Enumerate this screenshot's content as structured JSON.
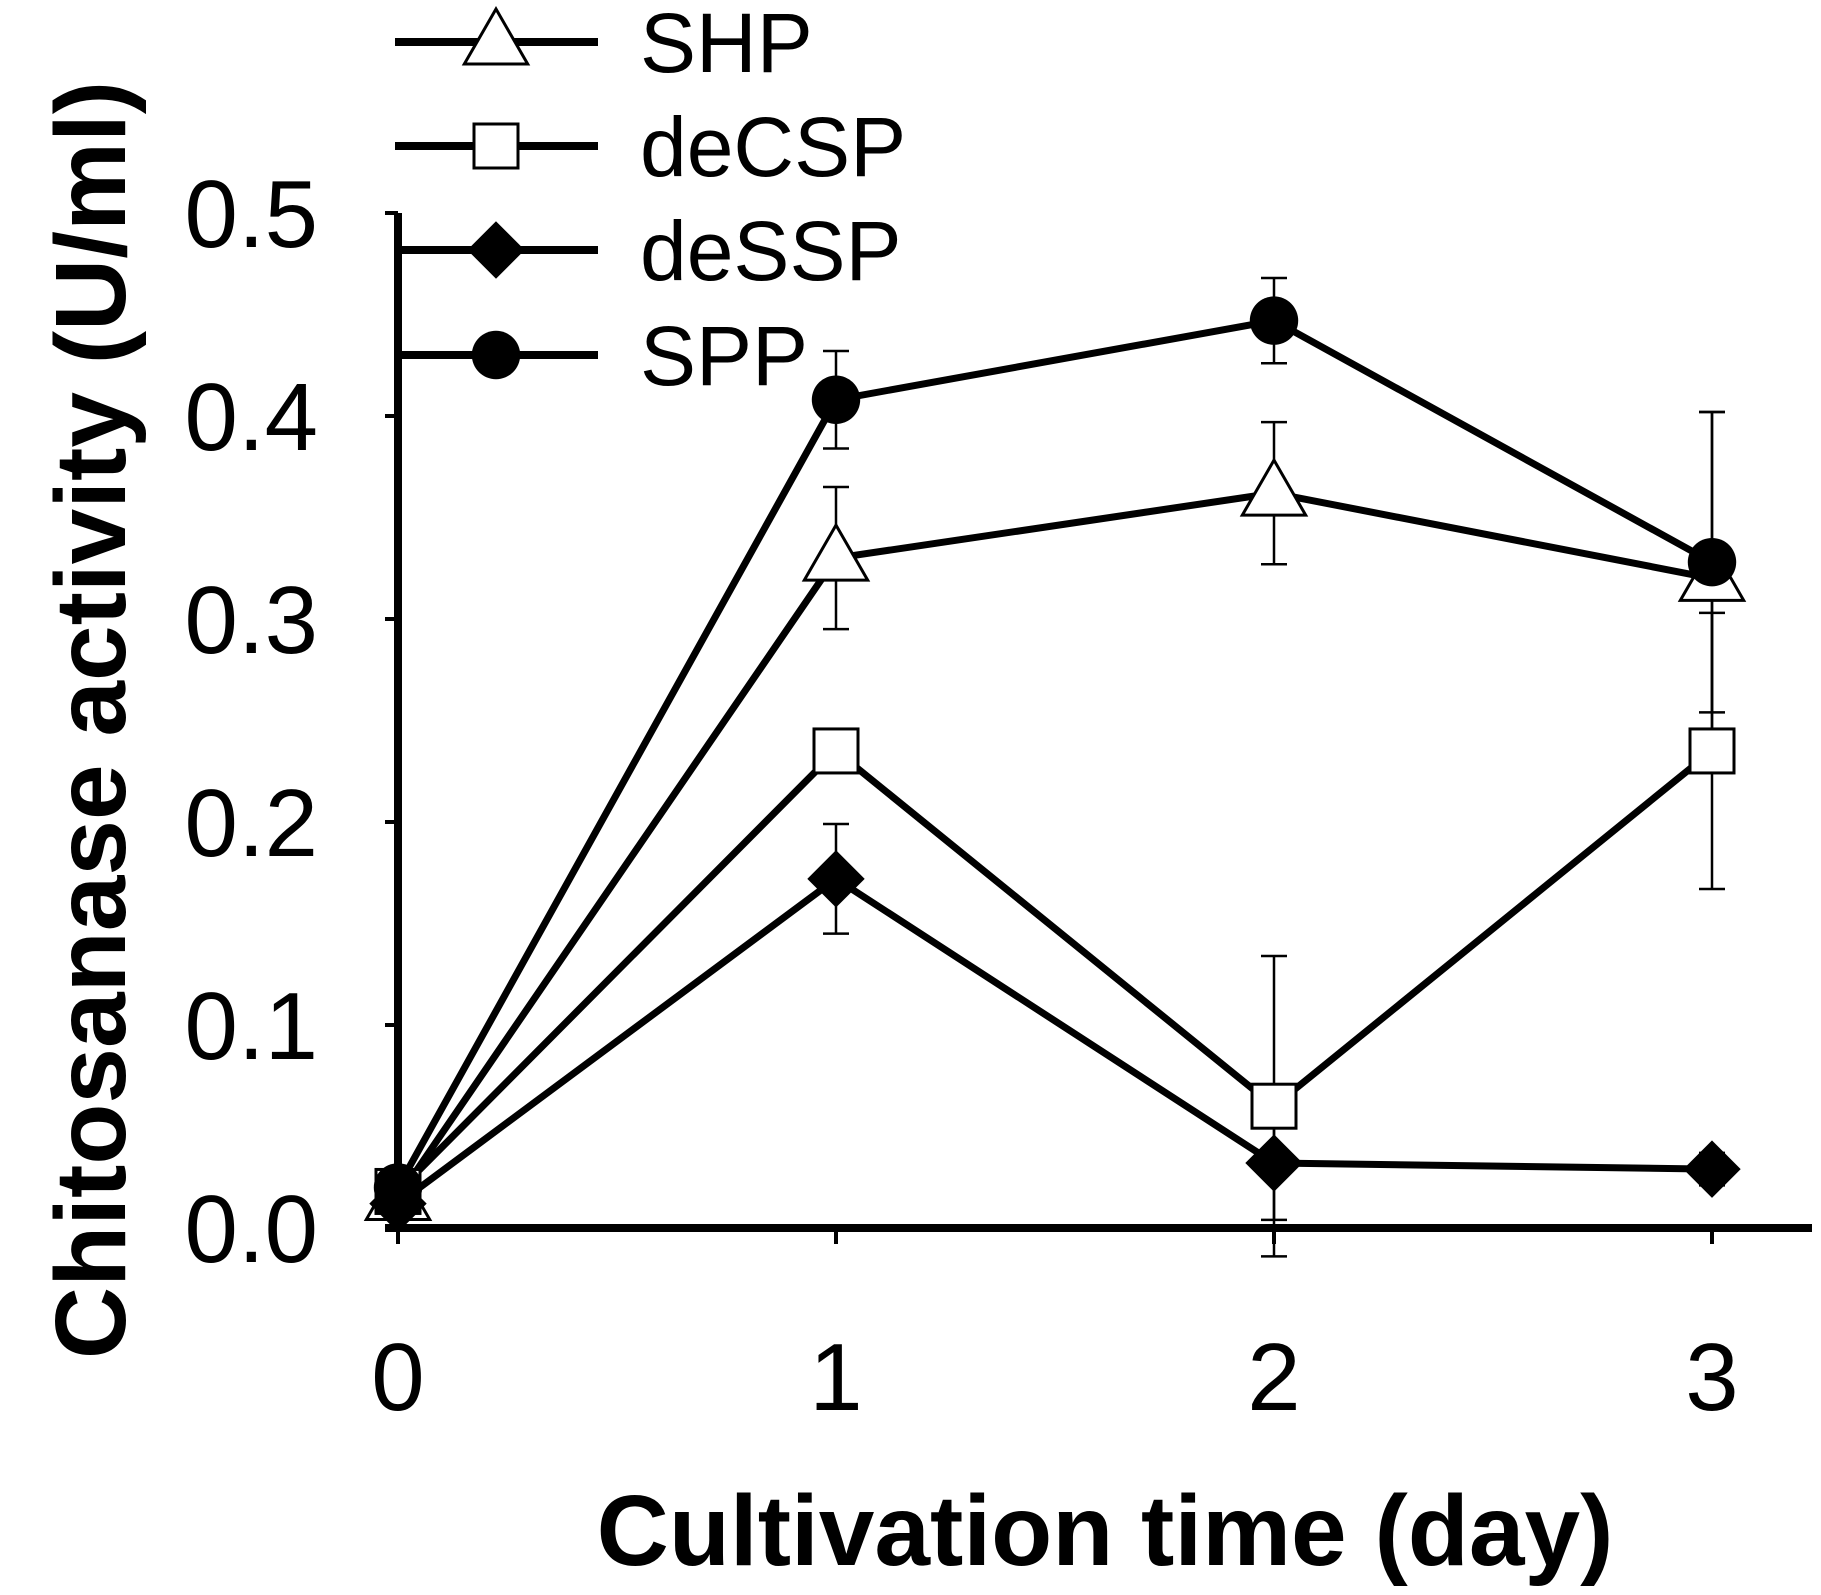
{
  "chart_data": {
    "type": "line",
    "title": "",
    "xlabel": "Cultivation time (day)",
    "ylabel": "Chitosanase activity (U/ml)",
    "x": [
      0,
      1,
      2,
      3
    ],
    "x_ticks": [
      "0",
      "1",
      "2",
      "3"
    ],
    "y_ticks": [
      "0.0",
      "0.1",
      "0.2",
      "0.3",
      "0.4",
      "0.5"
    ],
    "ylim": [
      0,
      0.5
    ],
    "xlim": [
      0,
      3.2
    ],
    "legend_position": "top-left",
    "series": [
      {
        "name": "SHP",
        "marker": "triangle-open",
        "values": [
          0.015,
          0.33,
          0.362,
          0.32
        ],
        "errors": [
          0.005,
          0.035,
          0.035,
          0.082
        ]
      },
      {
        "name": "deCSP",
        "marker": "square-open",
        "values": [
          0.018,
          0.235,
          0.06,
          0.235
        ],
        "errors": [
          0.005,
          0.01,
          0.074,
          0.068
        ]
      },
      {
        "name": "deSSP",
        "marker": "diamond-filled",
        "values": [
          0.012,
          0.172,
          0.032,
          0.029
        ],
        "errors": [
          0.004,
          0.027,
          0.028,
          0.008
        ]
      },
      {
        "name": "SPP",
        "marker": "circle-filled",
        "values": [
          0.02,
          0.408,
          0.447,
          0.328
        ],
        "errors": [
          0.005,
          0.024,
          0.021,
          0.074
        ]
      }
    ]
  }
}
